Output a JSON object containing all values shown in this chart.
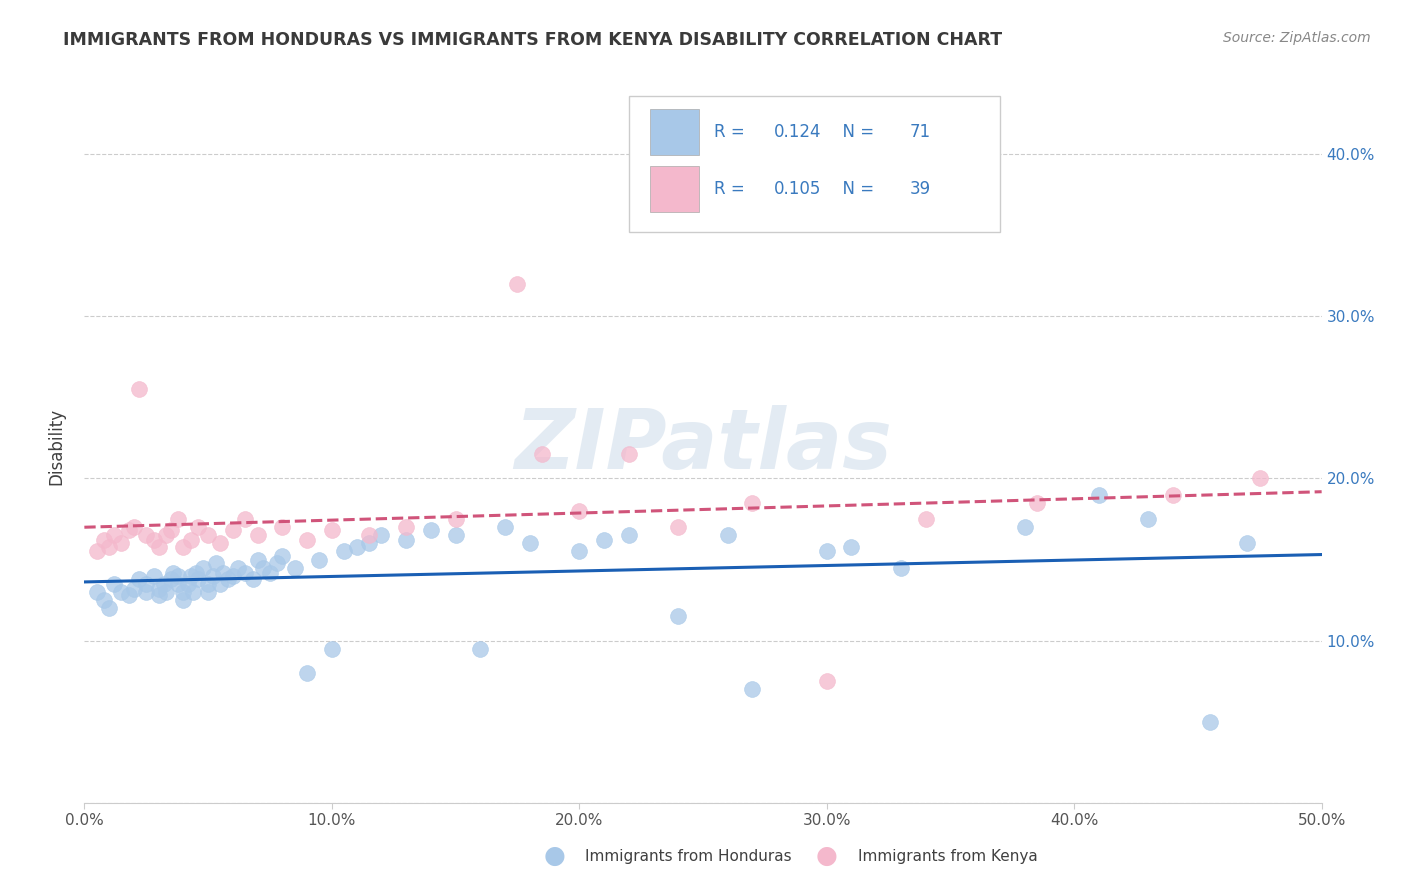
{
  "title": "IMMIGRANTS FROM HONDURAS VS IMMIGRANTS FROM KENYA DISABILITY CORRELATION CHART",
  "source": "Source: ZipAtlas.com",
  "ylabel": "Disability",
  "xlim": [
    0.0,
    0.5
  ],
  "ylim": [
    0.0,
    0.44
  ],
  "xticks": [
    0.0,
    0.1,
    0.2,
    0.3,
    0.4,
    0.5
  ],
  "yticks": [
    0.0,
    0.1,
    0.2,
    0.3,
    0.4
  ],
  "xtick_labels": [
    "0.0%",
    "10.0%",
    "20.0%",
    "30.0%",
    "40.0%",
    "50.0%"
  ],
  "right_ytick_labels": [
    "",
    "10.0%",
    "20.0%",
    "30.0%",
    "40.0%"
  ],
  "left_ytick_labels": [
    "",
    "",
    "",
    "",
    ""
  ],
  "legend1_r": "0.124",
  "legend1_n": "71",
  "legend2_r": "0.105",
  "legend2_n": "39",
  "legend1_label": "Immigrants from Honduras",
  "legend2_label": "Immigrants from Kenya",
  "color_honduras": "#a8c8e8",
  "color_kenya": "#f4b8cc",
  "color_honduras_line": "#1a5fb4",
  "color_kenya_line": "#d0547a",
  "watermark": "ZIPatlas",
  "legend_text_color": "#3a7abf",
  "title_color": "#3a3a3a",
  "source_color": "#888888",
  "grid_color": "#cccccc",
  "honduras_x": [
    0.005,
    0.008,
    0.01,
    0.012,
    0.015,
    0.018,
    0.02,
    0.022,
    0.025,
    0.025,
    0.028,
    0.03,
    0.03,
    0.032,
    0.033,
    0.035,
    0.036,
    0.038,
    0.038,
    0.04,
    0.04,
    0.042,
    0.043,
    0.044,
    0.045,
    0.046,
    0.048,
    0.05,
    0.05,
    0.052,
    0.053,
    0.055,
    0.056,
    0.058,
    0.06,
    0.062,
    0.065,
    0.068,
    0.07,
    0.072,
    0.075,
    0.078,
    0.08,
    0.085,
    0.09,
    0.095,
    0.1,
    0.105,
    0.11,
    0.115,
    0.12,
    0.13,
    0.14,
    0.15,
    0.16,
    0.17,
    0.18,
    0.2,
    0.21,
    0.22,
    0.24,
    0.26,
    0.27,
    0.3,
    0.31,
    0.33,
    0.38,
    0.41,
    0.43,
    0.455,
    0.47
  ],
  "honduras_y": [
    0.13,
    0.125,
    0.12,
    0.135,
    0.13,
    0.128,
    0.132,
    0.138,
    0.13,
    0.135,
    0.14,
    0.128,
    0.132,
    0.135,
    0.13,
    0.138,
    0.142,
    0.135,
    0.14,
    0.125,
    0.13,
    0.135,
    0.14,
    0.13,
    0.142,
    0.138,
    0.145,
    0.13,
    0.135,
    0.14,
    0.148,
    0.135,
    0.142,
    0.138,
    0.14,
    0.145,
    0.142,
    0.138,
    0.15,
    0.145,
    0.142,
    0.148,
    0.152,
    0.145,
    0.08,
    0.15,
    0.095,
    0.155,
    0.158,
    0.16,
    0.165,
    0.162,
    0.168,
    0.165,
    0.095,
    0.17,
    0.16,
    0.155,
    0.162,
    0.165,
    0.115,
    0.165,
    0.07,
    0.155,
    0.158,
    0.145,
    0.17,
    0.19,
    0.175,
    0.05,
    0.16
  ],
  "kenya_x": [
    0.005,
    0.008,
    0.01,
    0.012,
    0.015,
    0.018,
    0.02,
    0.022,
    0.025,
    0.028,
    0.03,
    0.033,
    0.035,
    0.038,
    0.04,
    0.043,
    0.046,
    0.05,
    0.055,
    0.06,
    0.065,
    0.07,
    0.08,
    0.09,
    0.1,
    0.115,
    0.13,
    0.15,
    0.175,
    0.185,
    0.2,
    0.22,
    0.24,
    0.27,
    0.3,
    0.34,
    0.385,
    0.44,
    0.475
  ],
  "kenya_y": [
    0.155,
    0.162,
    0.158,
    0.165,
    0.16,
    0.168,
    0.17,
    0.255,
    0.165,
    0.162,
    0.158,
    0.165,
    0.168,
    0.175,
    0.158,
    0.162,
    0.17,
    0.165,
    0.16,
    0.168,
    0.175,
    0.165,
    0.17,
    0.162,
    0.168,
    0.165,
    0.17,
    0.175,
    0.32,
    0.215,
    0.18,
    0.215,
    0.17,
    0.185,
    0.075,
    0.175,
    0.185,
    0.19,
    0.2
  ]
}
